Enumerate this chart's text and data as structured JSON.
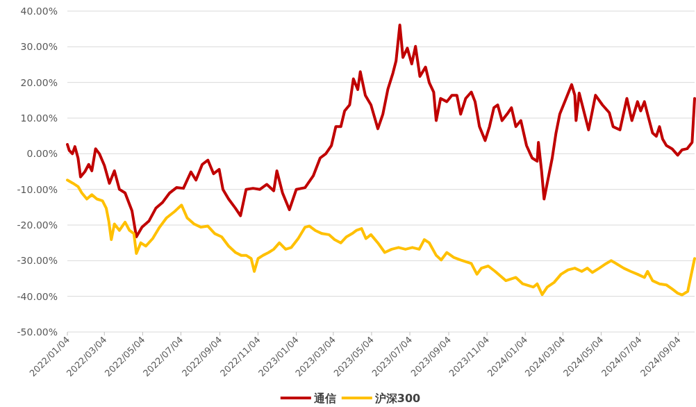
{
  "chart_data": {
    "type": "line",
    "xlim": [
      "2022-01-04",
      "2024-09-30"
    ],
    "ylim": [
      -50,
      40
    ],
    "xticks": [
      {
        "value": "2022-01-04",
        "label": "2022/01/04"
      },
      {
        "value": "2022-03-04",
        "label": "2022/03/04"
      },
      {
        "value": "2022-05-04",
        "label": "2022/05/04"
      },
      {
        "value": "2022-07-04",
        "label": "2022/07/04"
      },
      {
        "value": "2022-09-04",
        "label": "2022/09/04"
      },
      {
        "value": "2022-11-04",
        "label": "2022/11/04"
      },
      {
        "value": "2023-01-04",
        "label": "2023/01/04"
      },
      {
        "value": "2023-03-04",
        "label": "2023/03/04"
      },
      {
        "value": "2023-05-04",
        "label": "2023/05/04"
      },
      {
        "value": "2023-07-04",
        "label": "2023/07/04"
      },
      {
        "value": "2023-09-04",
        "label": "2023/09/04"
      },
      {
        "value": "2023-11-04",
        "label": "2023/11/04"
      },
      {
        "value": "2024-01-04",
        "label": "2024/01/04"
      },
      {
        "value": "2024-03-04",
        "label": "2024/03/04"
      },
      {
        "value": "2024-05-04",
        "label": "2024/05/04"
      },
      {
        "value": "2024-07-04",
        "label": "2024/07/04"
      },
      {
        "value": "2024-09-04",
        "label": "2024/09/04"
      }
    ],
    "yticks": [
      {
        "value": 40,
        "label": "40.00%"
      },
      {
        "value": 30,
        "label": "30.00%"
      },
      {
        "value": 20,
        "label": "20.00%"
      },
      {
        "value": 10,
        "label": "10.00%"
      },
      {
        "value": 0,
        "label": "0.00%"
      },
      {
        "value": -10,
        "label": "-10.00%"
      },
      {
        "value": -20,
        "label": "-20.00%"
      },
      {
        "value": -30,
        "label": "-30.00%"
      },
      {
        "value": -40,
        "label": "-40.00%"
      },
      {
        "value": -50,
        "label": "-50.00%"
      }
    ],
    "grid": "y",
    "legend": "bottom",
    "series": [
      {
        "name": "通信",
        "color": "#c00000",
        "x": [
          "2022-01-04",
          "2022-01-07",
          "2022-01-12",
          "2022-01-16",
          "2022-01-21",
          "2022-01-25",
          "2022-02-01",
          "2022-02-07",
          "2022-02-12",
          "2022-02-18",
          "2022-02-24",
          "2022-03-04",
          "2022-03-12",
          "2022-03-20",
          "2022-03-28",
          "2022-04-06",
          "2022-04-17",
          "2022-04-24",
          "2022-05-03",
          "2022-05-14",
          "2022-05-25",
          "2022-06-05",
          "2022-06-16",
          "2022-06-27",
          "2022-07-08",
          "2022-07-20",
          "2022-07-28",
          "2022-08-07",
          "2022-08-16",
          "2022-08-25",
          "2022-09-03",
          "2022-09-09",
          "2022-09-18",
          "2022-09-29",
          "2022-10-07",
          "2022-10-16",
          "2022-10-27",
          "2022-11-07",
          "2022-11-18",
          "2022-11-29",
          "2022-12-04",
          "2022-12-13",
          "2022-12-24",
          "2023-01-04",
          "2023-01-18",
          "2023-01-31",
          "2023-02-11",
          "2023-02-20",
          "2023-03-01",
          "2023-03-08",
          "2023-03-16",
          "2023-03-22",
          "2023-03-30",
          "2023-04-05",
          "2023-04-12",
          "2023-04-16",
          "2023-04-24",
          "2023-05-03",
          "2023-05-14",
          "2023-05-22",
          "2023-05-30",
          "2023-06-07",
          "2023-06-12",
          "2023-06-18",
          "2023-06-23",
          "2023-06-30",
          "2023-07-07",
          "2023-07-13",
          "2023-07-20",
          "2023-07-29",
          "2023-08-04",
          "2023-08-11",
          "2023-08-15",
          "2023-08-22",
          "2023-09-01",
          "2023-09-09",
          "2023-09-17",
          "2023-09-23",
          "2023-10-01",
          "2023-10-10",
          "2023-10-16",
          "2023-10-23",
          "2023-11-01",
          "2023-11-08",
          "2023-11-15",
          "2023-11-21",
          "2023-11-28",
          "2023-12-06",
          "2023-12-13",
          "2023-12-20",
          "2023-12-28",
          "2024-01-06",
          "2024-01-15",
          "2024-01-23",
          "2024-01-25",
          "2024-01-30",
          "2024-02-03",
          "2024-02-08",
          "2024-02-16",
          "2024-02-22",
          "2024-02-28",
          "2024-03-07",
          "2024-03-18",
          "2024-03-23",
          "2024-03-25",
          "2024-03-30",
          "2024-04-14",
          "2024-04-25",
          "2024-05-06",
          "2024-05-17",
          "2024-05-23",
          "2024-06-03",
          "2024-06-14",
          "2024-06-22",
          "2024-07-01",
          "2024-07-06",
          "2024-07-12",
          "2024-07-17",
          "2024-07-25",
          "2024-07-31",
          "2024-08-05",
          "2024-08-10",
          "2024-08-16",
          "2024-08-25",
          "2024-09-03",
          "2024-09-10",
          "2024-09-18",
          "2024-09-26",
          "2024-09-30"
        ],
        "values": [
          2.6,
          0.9,
          0,
          2,
          -1.2,
          -6.5,
          -5,
          -3,
          -4.8,
          1.4,
          0,
          -3.3,
          -8.3,
          -4.8,
          -10,
          -11,
          -16,
          -23.3,
          -20.6,
          -18.9,
          -15.3,
          -13.6,
          -11,
          -9.5,
          -9.7,
          -5.1,
          -7.4,
          -3,
          -1.8,
          -5.6,
          -4.4,
          -10,
          -12.7,
          -15.3,
          -17.4,
          -10,
          -9.7,
          -10,
          -8.6,
          -10.4,
          -4.8,
          -11,
          -15.7,
          -10,
          -9.5,
          -6.2,
          -1.2,
          0,
          2.3,
          7.6,
          7.6,
          12,
          13.7,
          21,
          18,
          23,
          16.4,
          13.7,
          7,
          11.1,
          18.1,
          22.6,
          26,
          36.1,
          27,
          29.6,
          25.2,
          30.1,
          21.7,
          24.3,
          19.9,
          17.3,
          9.3,
          15.5,
          14.6,
          16.4,
          16.4,
          11.1,
          15.5,
          17.3,
          14.6,
          7.6,
          3.7,
          7.6,
          12.9,
          13.7,
          9.3,
          11.1,
          12.9,
          7.6,
          9.3,
          2.3,
          -1.2,
          -2.1,
          3.2,
          -4.8,
          -12.7,
          -8.3,
          -1.2,
          5.8,
          11.1,
          14.6,
          19.4,
          16.4,
          9.3,
          17,
          6.7,
          16.4,
          13.7,
          11.5,
          7.6,
          6.7,
          15.5,
          9.3,
          14.6,
          12,
          14.6,
          11.1,
          5.8,
          4.9,
          7.6,
          4.1,
          2.3,
          1.4,
          -0.4,
          1.1,
          1.4,
          3.2,
          15.5
        ]
      },
      {
        "name": "沪深300",
        "color": "#ffc000",
        "x": [
          "2022-01-04",
          "2022-01-13",
          "2022-01-21",
          "2022-01-27",
          "2022-02-04",
          "2022-02-12",
          "2022-02-20",
          "2022-03-01",
          "2022-03-07",
          "2022-03-11",
          "2022-03-15",
          "2022-03-20",
          "2022-03-28",
          "2022-04-06",
          "2022-04-13",
          "2022-04-20",
          "2022-04-24",
          "2022-05-01",
          "2022-05-09",
          "2022-05-20",
          "2022-05-31",
          "2022-06-11",
          "2022-06-24",
          "2022-07-05",
          "2022-07-14",
          "2022-07-25",
          "2022-08-05",
          "2022-08-16",
          "2022-08-27",
          "2022-09-07",
          "2022-09-18",
          "2022-09-29",
          "2022-10-08",
          "2022-10-16",
          "2022-10-24",
          "2022-10-29",
          "2022-11-04",
          "2022-11-12",
          "2022-11-21",
          "2022-11-29",
          "2022-12-08",
          "2022-12-18",
          "2022-12-27",
          "2023-01-07",
          "2023-01-18",
          "2023-01-25",
          "2023-02-03",
          "2023-02-14",
          "2023-02-25",
          "2023-03-06",
          "2023-03-16",
          "2023-03-25",
          "2023-04-03",
          "2023-04-10",
          "2023-04-18",
          "2023-04-25",
          "2023-05-03",
          "2023-05-14",
          "2023-05-25",
          "2023-06-05",
          "2023-06-16",
          "2023-06-27",
          "2023-07-08",
          "2023-07-19",
          "2023-07-27",
          "2023-08-04",
          "2023-08-15",
          "2023-08-23",
          "2023-09-01",
          "2023-09-12",
          "2023-09-23",
          "2023-10-10",
          "2023-10-19",
          "2023-10-26",
          "2023-11-06",
          "2023-11-17",
          "2023-12-04",
          "2023-12-20",
          "2023-12-31",
          "2024-01-17",
          "2024-01-23",
          "2024-01-31",
          "2024-02-08",
          "2024-02-19",
          "2024-03-01",
          "2024-03-12",
          "2024-03-23",
          "2024-04-03",
          "2024-04-12",
          "2024-04-20",
          "2024-05-01",
          "2024-05-12",
          "2024-05-20",
          "2024-05-28",
          "2024-06-09",
          "2024-06-20",
          "2024-07-01",
          "2024-07-12",
          "2024-07-17",
          "2024-07-25",
          "2024-08-05",
          "2024-08-16",
          "2024-08-25",
          "2024-09-03",
          "2024-09-10",
          "2024-09-19",
          "2024-09-30"
        ],
        "values": [
          -7.4,
          -8.3,
          -9.2,
          -11,
          -12.7,
          -11.5,
          -12.7,
          -13.2,
          -15.3,
          -18.9,
          -24.1,
          -19.7,
          -21.5,
          -19.2,
          -21.5,
          -22.4,
          -28,
          -25,
          -25.9,
          -23.8,
          -20.6,
          -18,
          -16.2,
          -14.4,
          -18,
          -19.7,
          -20.6,
          -20.3,
          -22.4,
          -23.3,
          -25.9,
          -27.7,
          -28.5,
          -28.5,
          -29.4,
          -33,
          -29.4,
          -28.5,
          -27.7,
          -26.8,
          -25,
          -26.8,
          -26.3,
          -23.8,
          -20.6,
          -20.3,
          -21.5,
          -22.4,
          -22.7,
          -24.1,
          -25,
          -23.3,
          -22.4,
          -21.5,
          -21,
          -23.8,
          -22.7,
          -25,
          -27.7,
          -26.8,
          -26.3,
          -26.8,
          -26.3,
          -26.8,
          -24.1,
          -25,
          -28.5,
          -29.8,
          -27.7,
          -29.1,
          -29.8,
          -30.8,
          -33.8,
          -32.1,
          -31.5,
          -33,
          -35.6,
          -34.7,
          -36.5,
          -37.4,
          -36.5,
          -39.5,
          -37.4,
          -36.1,
          -33.8,
          -32.6,
          -32.1,
          -33,
          -32.1,
          -33.3,
          -32.1,
          -30.8,
          -30,
          -30.8,
          -32.1,
          -33,
          -33.8,
          -34.7,
          -33,
          -35.6,
          -36.5,
          -36.8,
          -37.9,
          -39.1,
          -39.6,
          -38.6,
          -29.4
        ]
      }
    ]
  }
}
